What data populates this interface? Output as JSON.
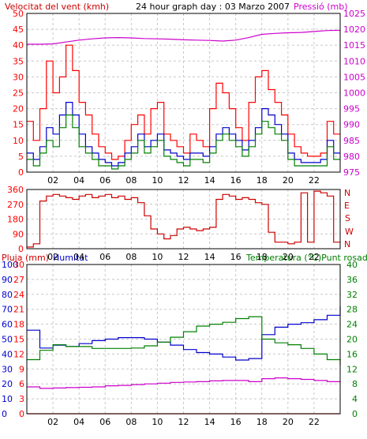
{
  "header": {
    "left_title": "Velocitat del vent (kmh)",
    "center_title": "24 hour graph day : 03 Marzo 2007",
    "right_title": "Pressió (mb)"
  },
  "colors": {
    "frame": "#000000",
    "grid": "#c8c8c8",
    "red": "#ff0000",
    "green": "#008000",
    "blue": "#0000cc",
    "magenta": "#cc00cc"
  },
  "x_axis": {
    "tick_labels": [
      "02",
      "04",
      "06",
      "08",
      "10",
      "12",
      "14",
      "16",
      "18",
      "20",
      "22"
    ]
  },
  "chart_data": [
    {
      "type": "line",
      "title": "24 hour graph day : 03 Marzo 2007",
      "xlabel": "",
      "x_unit": "hour",
      "xlim": [
        0,
        24
      ],
      "left_axis": {
        "label": "Velocitat del vent (kmh)",
        "ticks": [
          0,
          5,
          10,
          15,
          20,
          25,
          30,
          35,
          40,
          45,
          50
        ],
        "ylim": [
          0,
          50
        ]
      },
      "right_axis": {
        "label": "Pressió (mb)",
        "ticks": [
          975,
          980,
          985,
          990,
          995,
          1000,
          1005,
          1010,
          1015,
          1020,
          1025
        ],
        "ylim": [
          975,
          1025
        ]
      },
      "grid": true,
      "series": [
        {
          "name": "Pressió (mb)",
          "color": "#cc00cc",
          "axis": "right",
          "x": [
            0,
            1,
            2,
            3,
            4,
            5,
            6,
            7,
            8,
            9,
            10,
            11,
            12,
            13,
            14,
            15,
            16,
            17,
            18,
            19,
            20,
            21,
            22,
            23,
            24
          ],
          "values": [
            1015.3,
            1015.3,
            1015.4,
            1016.0,
            1016.6,
            1017.0,
            1017.3,
            1017.4,
            1017.3,
            1017.1,
            1017.0,
            1016.9,
            1016.7,
            1016.6,
            1016.5,
            1016.3,
            1016.6,
            1017.4,
            1018.4,
            1018.7,
            1018.9,
            1019.0,
            1019.3,
            1019.6,
            1019.7
          ]
        },
        {
          "name": "Velocitat del vent (kmh)",
          "color": "#ff0000",
          "axis": "left",
          "x": [
            0,
            0.5,
            1,
            1.5,
            2,
            2.5,
            3,
            3.5,
            4,
            4.5,
            5,
            5.5,
            6,
            6.5,
            7,
            7.5,
            8,
            8.5,
            9,
            9.5,
            10,
            10.5,
            11,
            11.5,
            12,
            12.5,
            13,
            13.5,
            14,
            14.5,
            15,
            15.5,
            16,
            16.5,
            17,
            17.5,
            18,
            18.5,
            19,
            19.5,
            20,
            20.5,
            21,
            21.5,
            22,
            22.5,
            23,
            23.5
          ],
          "values": [
            16,
            10,
            20,
            35,
            25,
            30,
            40,
            32,
            22,
            18,
            12,
            8,
            6,
            4,
            5,
            10,
            15,
            18,
            12,
            20,
            22,
            12,
            10,
            8,
            6,
            12,
            10,
            8,
            20,
            28,
            25,
            20,
            14,
            10,
            22,
            30,
            32,
            26,
            22,
            18,
            12,
            8,
            6,
            5,
            5,
            6,
            16,
            12
          ]
        },
        {
          "name": "Ratxa de vent (kmh)",
          "color": "#0000cc",
          "axis": "left",
          "x": [
            0,
            0.5,
            1,
            1.5,
            2,
            2.5,
            3,
            3.5,
            4,
            4.5,
            5,
            5.5,
            6,
            6.5,
            7,
            7.5,
            8,
            8.5,
            9,
            9.5,
            10,
            10.5,
            11,
            11.5,
            12,
            12.5,
            13,
            13.5,
            14,
            14.5,
            15,
            15.5,
            16,
            16.5,
            17,
            17.5,
            18,
            18.5,
            19,
            19.5,
            20,
            20.5,
            21,
            21.5,
            22,
            22.5,
            23,
            23.5
          ],
          "values": [
            6,
            4,
            8,
            14,
            12,
            18,
            22,
            18,
            12,
            8,
            6,
            4,
            3,
            2,
            3,
            6,
            8,
            12,
            8,
            10,
            12,
            7,
            6,
            5,
            4,
            6,
            6,
            5,
            8,
            12,
            14,
            12,
            10,
            7,
            10,
            14,
            20,
            18,
            15,
            12,
            6,
            4,
            3,
            3,
            3,
            4,
            10,
            6
          ]
        },
        {
          "name": "Velocitat mitjana (kmh)",
          "color": "#008000",
          "axis": "left",
          "x": [
            0,
            0.5,
            1,
            1.5,
            2,
            2.5,
            3,
            3.5,
            4,
            4.5,
            5,
            5.5,
            6,
            6.5,
            7,
            7.5,
            8,
            8.5,
            9,
            9.5,
            10,
            10.5,
            11,
            11.5,
            12,
            12.5,
            13,
            13.5,
            14,
            14.5,
            15,
            15.5,
            16,
            16.5,
            17,
            17.5,
            18,
            18.5,
            19,
            19.5,
            20,
            20.5,
            21,
            21.5,
            22,
            22.5,
            23,
            23.5
          ],
          "values": [
            4,
            2,
            6,
            10,
            8,
            14,
            18,
            14,
            8,
            6,
            4,
            2,
            2,
            1,
            2,
            4,
            6,
            10,
            6,
            8,
            10,
            5,
            4,
            3,
            2,
            4,
            4,
            3,
            6,
            10,
            12,
            10,
            8,
            5,
            8,
            12,
            16,
            14,
            12,
            10,
            4,
            2,
            2,
            2,
            2,
            2,
            8,
            4
          ]
        }
      ]
    },
    {
      "type": "scatter",
      "title": "",
      "xlabel": "",
      "x_unit": "hour",
      "xlim": [
        0,
        24
      ],
      "left_axis": {
        "label": "",
        "ticks": [
          "0",
          "90",
          "180",
          "270",
          "360"
        ],
        "ylim": [
          0,
          360
        ]
      },
      "right_axis": {
        "label": "",
        "ticks": [
          "N",
          "W",
          "S",
          "E",
          "N"
        ]
      },
      "grid": true,
      "series": [
        {
          "name": "",
          "color": "#cc0000",
          "x": [
            0,
            0.5,
            1,
            1.5,
            2,
            2.5,
            3,
            3.5,
            4,
            4.5,
            5,
            5.5,
            6,
            6.5,
            7,
            7.5,
            8,
            8.5,
            9,
            9.5,
            10,
            10.5,
            11,
            11.5,
            12,
            12.5,
            13,
            13.5,
            14,
            14.5,
            15,
            15.5,
            16,
            16.5,
            17,
            17.5,
            18,
            18.5,
            19,
            19.5,
            20,
            20.5,
            21,
            21.5,
            22,
            22.5,
            23,
            23.5
          ],
          "values": [
            10,
            30,
            290,
            320,
            330,
            320,
            310,
            300,
            320,
            330,
            310,
            320,
            330,
            310,
            320,
            300,
            310,
            280,
            200,
            120,
            90,
            60,
            80,
            120,
            130,
            120,
            110,
            120,
            130,
            300,
            330,
            320,
            300,
            310,
            300,
            280,
            270,
            100,
            40,
            40,
            30,
            40,
            340,
            40,
            350,
            340,
            320,
            40
          ]
        }
      ]
    },
    {
      "type": "line",
      "title": "",
      "xlabel": "",
      "x_unit": "hour",
      "xlim": [
        0,
        24
      ],
      "left_axis_outer": {
        "label": "Pluja (mm)",
        "ticks": [
          0,
          3,
          6,
          9,
          12,
          15,
          18,
          21,
          24,
          27,
          30
        ]
      },
      "left_axis_inner": {
        "label": "Humitat",
        "ticks": [
          0,
          10,
          20,
          30,
          40,
          50,
          60,
          70,
          80,
          90,
          100
        ],
        "ylim": [
          0,
          100
        ]
      },
      "right_axis": {
        "label": "Temperatura (°C)Punt rosada",
        "ticks": [
          0,
          4,
          8,
          12,
          16,
          20,
          24,
          28,
          32,
          36,
          40
        ],
        "ylim": [
          0,
          40
        ]
      },
      "grid": true,
      "series": [
        {
          "name": "Humitat",
          "color": "#0000cc",
          "axis": "inner",
          "x": [
            0,
            1,
            2,
            3,
            4,
            5,
            6,
            7,
            8,
            9,
            10,
            11,
            12,
            13,
            14,
            15,
            16,
            17,
            18,
            19,
            20,
            21,
            22,
            23,
            24
          ],
          "values": [
            56,
            44,
            46,
            45,
            47,
            49,
            50,
            51,
            51,
            50,
            48,
            46,
            43,
            41,
            40,
            38,
            36,
            37,
            53,
            58,
            60,
            61,
            63,
            66,
            72
          ]
        },
        {
          "name": "Temperatura (°C)",
          "color": "#008000",
          "axis": "right",
          "x": [
            0,
            1,
            2,
            3,
            4,
            5,
            6,
            7,
            8,
            9,
            10,
            11,
            12,
            13,
            14,
            15,
            16,
            17,
            18,
            19,
            20,
            21,
            22,
            23,
            24
          ],
          "values": [
            14.5,
            17,
            18.5,
            18,
            18,
            17.5,
            17.5,
            17.5,
            17.6,
            18.2,
            19.2,
            20.5,
            22,
            23.5,
            24,
            24.5,
            25.5,
            26,
            20,
            19,
            18.5,
            17.5,
            16,
            14.5,
            13
          ]
        },
        {
          "name": "Punt rosada",
          "color": "#cc00cc",
          "axis": "right",
          "x": [
            0,
            1,
            2,
            3,
            4,
            5,
            6,
            7,
            8,
            9,
            10,
            11,
            12,
            13,
            14,
            15,
            16,
            17,
            18,
            19,
            20,
            21,
            22,
            23,
            24
          ],
          "values": [
            7.2,
            6.8,
            6.9,
            7.0,
            7.1,
            7.2,
            7.5,
            7.6,
            7.8,
            8.0,
            8.2,
            8.4,
            8.5,
            8.6,
            8.8,
            8.9,
            8.9,
            8.6,
            9.4,
            9.6,
            9.4,
            9.2,
            8.9,
            8.6,
            8.4
          ]
        },
        {
          "name": "Pluja (mm)",
          "color": "#ff0000",
          "axis": "outer",
          "x": [
            0,
            24
          ],
          "values": [
            0,
            0
          ]
        }
      ]
    }
  ]
}
